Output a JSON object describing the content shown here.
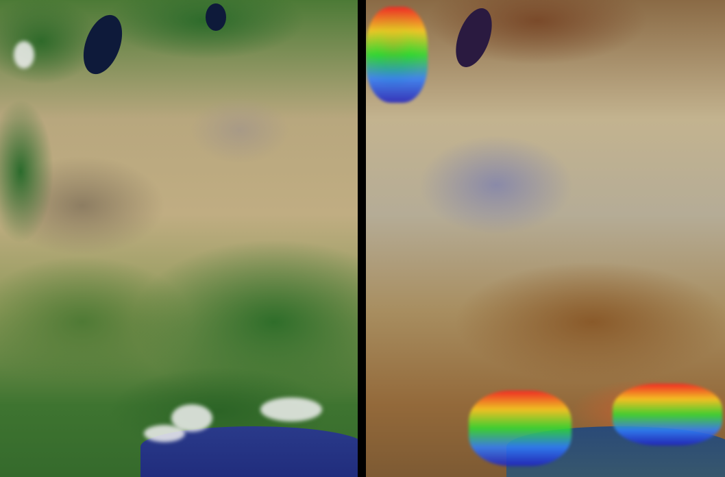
{
  "panels": [
    {
      "id": "left",
      "colors": {
        "land": "#b8a77e",
        "vegetation": "#2f6e2a",
        "water": "#1e2a7a",
        "lake": "#0e1a3a"
      }
    },
    {
      "id": "right",
      "colors": {
        "land": "#c3b38f",
        "relief": "#8a5a2a",
        "urban": "#8a8aa8",
        "water": "#2a4a78",
        "lake": "#2a1a40"
      }
    }
  ],
  "divider_color": "#000000"
}
